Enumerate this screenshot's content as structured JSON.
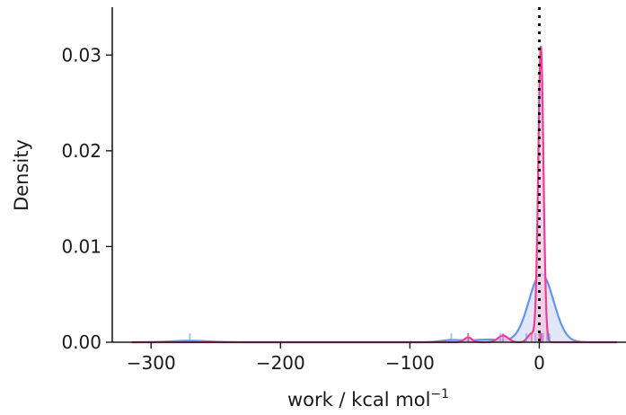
{
  "chart_data": {
    "type": "area",
    "title": "",
    "xlabel": "work / kcal mol",
    "xlabel_superscript": "−1",
    "ylabel": "Density",
    "xlim": [
      -330,
      67
    ],
    "ylim": [
      0,
      0.035
    ],
    "x_ticks": [
      -300,
      -200,
      -100,
      0
    ],
    "x_tick_labels": [
      "−300",
      "−200",
      "−100",
      "0"
    ],
    "y_ticks": [
      0,
      0.01,
      0.02,
      0.03
    ],
    "y_tick_labels": [
      "0.00",
      "0.01",
      "0.02",
      "0.03"
    ],
    "grid": false,
    "legend": "none",
    "reference_line": {
      "x": 0,
      "style": "dotted",
      "color": "#000000"
    },
    "series": [
      {
        "color": "#6495ed",
        "fill_color": "#d6e0f6",
        "kde_components": [
          {
            "mean": 1.5,
            "sd": 9.5,
            "height": 0.00715
          },
          {
            "mean": -40,
            "sd": 12,
            "height": 0.00028
          },
          {
            "mean": -68,
            "sd": 8,
            "height": 0.00022
          },
          {
            "mean": -270,
            "sd": 14,
            "height": 0.00016
          }
        ],
        "rug": [
          -270,
          -68,
          -55,
          -30,
          -10,
          -3,
          1,
          3,
          6,
          8
        ]
      },
      {
        "color": "#ee3d96",
        "fill_color": "#f3c8e4",
        "kde_components": [
          {
            "mean": 1.2,
            "sd": 2.0,
            "height": 0.0309
          },
          {
            "mean": -55,
            "sd": 3.0,
            "height": 0.0005
          },
          {
            "mean": -28,
            "sd": 4.0,
            "height": 0.0007
          },
          {
            "mean": -6,
            "sd": 3.0,
            "height": 0.0009
          }
        ],
        "rug": [
          -55,
          -28,
          -6,
          0,
          1,
          2
        ]
      }
    ]
  }
}
